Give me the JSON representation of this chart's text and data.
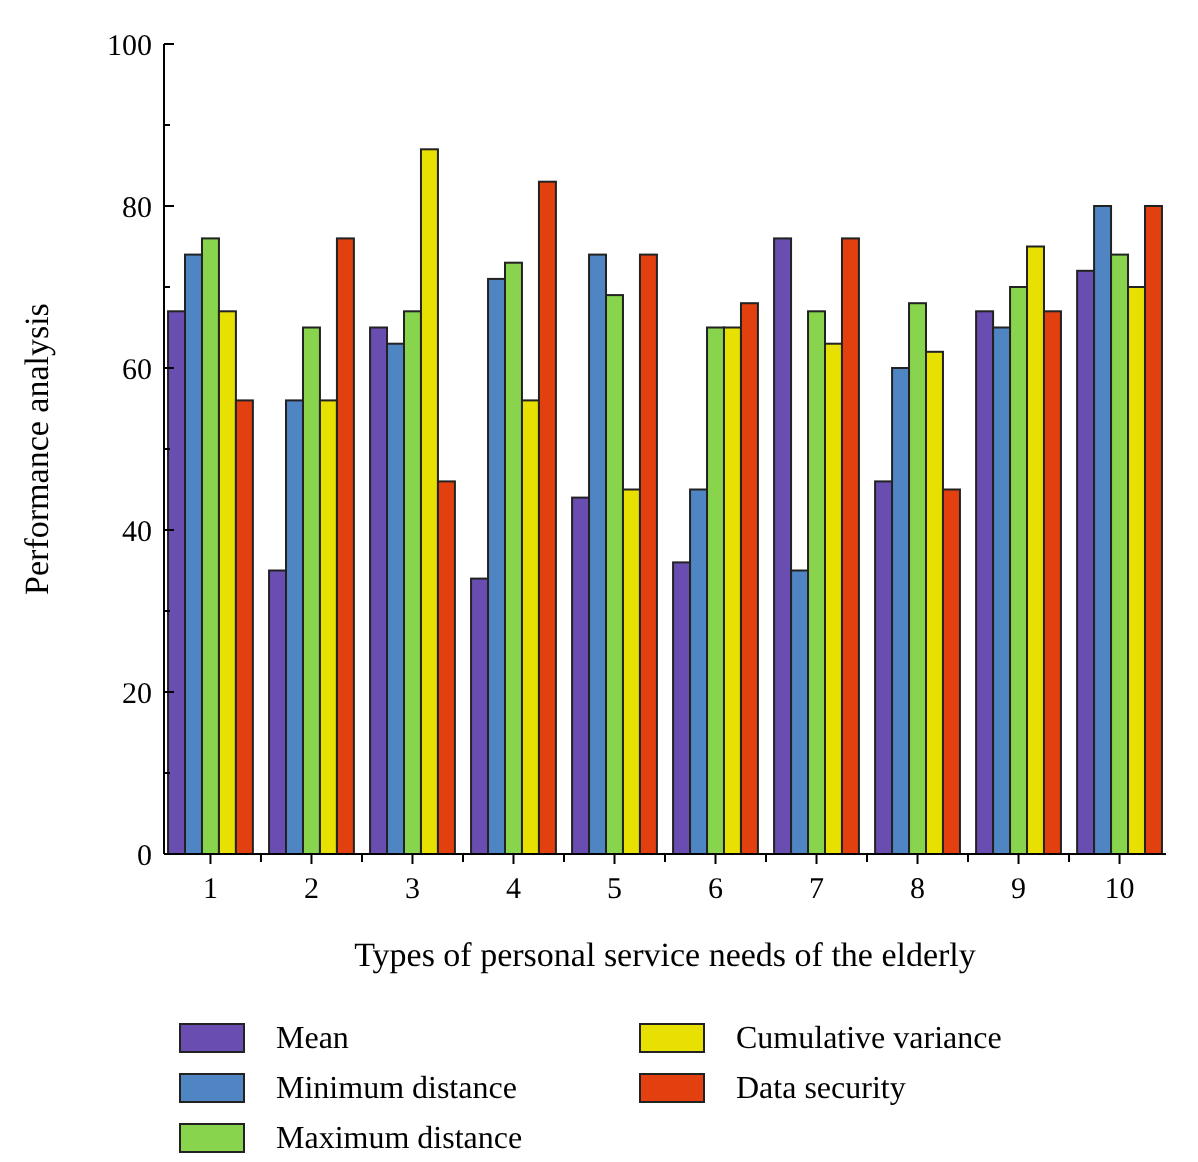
{
  "chart_data": {
    "type": "bar",
    "xlabel": "Types of personal service needs of the elderly",
    "ylabel": "Performance analysis",
    "categories": [
      "1",
      "2",
      "3",
      "4",
      "5",
      "6",
      "7",
      "8",
      "9",
      "10"
    ],
    "series": [
      {
        "name": "Mean",
        "color": "#6a4db0",
        "values": [
          67,
          35,
          65,
          34,
          44,
          36,
          76,
          46,
          67,
          72
        ]
      },
      {
        "name": "Minimum distance",
        "color": "#5085c4",
        "values": [
          74,
          56,
          63,
          71,
          74,
          45,
          35,
          60,
          65,
          80
        ]
      },
      {
        "name": "Maximum distance",
        "color": "#88d44c",
        "values": [
          76,
          65,
          67,
          73,
          69,
          65,
          67,
          68,
          70,
          74
        ]
      },
      {
        "name": "Cumulative variance",
        "color": "#e8e000",
        "values": [
          67,
          56,
          87,
          56,
          45,
          65,
          63,
          62,
          75,
          70
        ]
      },
      {
        "name": "Data security",
        "color": "#e2410f",
        "values": [
          56,
          76,
          46,
          83,
          74,
          68,
          76,
          45,
          67,
          80
        ]
      }
    ],
    "ylim": [
      0,
      100
    ],
    "yticks": [
      0,
      {
        "value": 10,
        "label": null
      },
      20,
      {
        "value": 30,
        "label": null
      },
      40,
      {
        "value": 50,
        "label": null
      },
      60,
      {
        "value": 70,
        "label": null
      },
      80,
      {
        "value": 90,
        "label": null
      },
      100
    ],
    "grid": false,
    "legend": "bottom"
  }
}
